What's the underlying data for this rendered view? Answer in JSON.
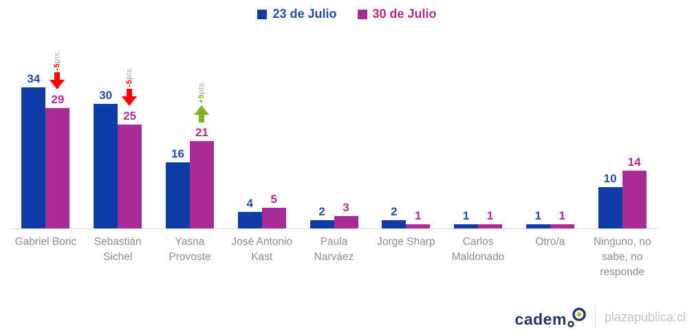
{
  "chart_data": {
    "type": "bar",
    "title": "",
    "xlabel": "",
    "ylabel": "",
    "ylim": [
      0,
      36
    ],
    "grid": false,
    "legend_position": "top",
    "categories": [
      "Gabriel Boric",
      "Sebastián Sichel",
      "Yasna Provoste",
      "José Antonio Kast",
      "Paula Narváez",
      "Jorge Sharp",
      "Carlos Maldonado",
      "Otro/a",
      "Ninguno, no sabe, no responde"
    ],
    "series": [
      {
        "name": "23 de Julio",
        "color": "#0D3DA4",
        "label_color": "#1F4E9C",
        "values": [
          34,
          30,
          16,
          4,
          2,
          2,
          1,
          1,
          10
        ]
      },
      {
        "name": "30 de Julio",
        "color": "#A82C96",
        "label_color": "#B3298E",
        "values": [
          29,
          25,
          21,
          5,
          3,
          1,
          1,
          1,
          14
        ]
      }
    ],
    "annotations": [
      {
        "category_index": 0,
        "text_value": "-5",
        "text_suffix": "pts.",
        "direction": "down",
        "color": "#FF0000"
      },
      {
        "category_index": 1,
        "text_value": "-5",
        "text_suffix": "pts.",
        "direction": "down",
        "color": "#FF0000"
      },
      {
        "category_index": 2,
        "text_value": "+5",
        "text_suffix": "pts.",
        "direction": "up",
        "color": "#84B226"
      }
    ],
    "axis_line_color": "#D9D9D9"
  },
  "footer": {
    "brand": "cadem",
    "site": "plazapublica.cl"
  }
}
